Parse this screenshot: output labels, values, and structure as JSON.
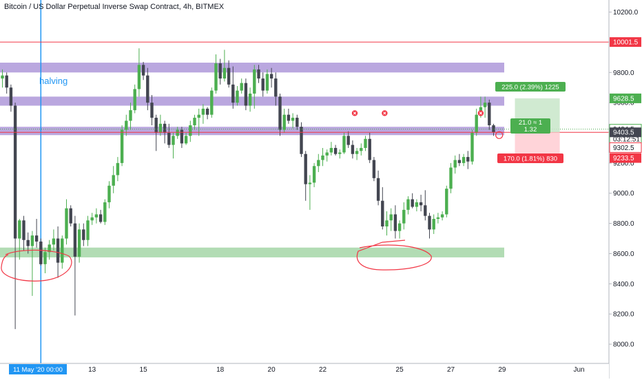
{
  "header": {
    "title": "Bitcoin / US Dollar Perpetual Inverse Swap Contract, 4h, BITMEX"
  },
  "colors": {
    "up": "#4caf50",
    "down": "#434651",
    "purple_zone": "#b39ddb",
    "green_zone": "#a5d6a7",
    "red_line": "#f23645",
    "blue_line": "#2196f3",
    "dotted_line": "#4caf50",
    "profit_box": "#c8e6c9",
    "loss_box": "#ffcdd2"
  },
  "chart_data": {
    "type": "candlestick",
    "title": "Bitcoin / US Dollar Perpetual Inverse Swap Contract, 4h, BITMEX",
    "y_range": [
      7900,
      10280
    ],
    "y_ticks": [
      "10200.0",
      "9800.0",
      "9600.0",
      "9400.0",
      "9200.0",
      "9000.0",
      "8800.0",
      "8600.0",
      "8400.0",
      "8200.0",
      "8000.0"
    ],
    "y_tick_values": [
      10200,
      9800,
      9600,
      9400,
      9200,
      9000,
      8800,
      8600,
      8400,
      8200,
      8000
    ],
    "x_labels": [
      {
        "label": "11 May '20  00:00",
        "bar": 11,
        "highlight": true
      },
      {
        "label": "13",
        "bar": 21
      },
      {
        "label": "15",
        "bar": 33
      },
      {
        "label": "18",
        "bar": 51
      },
      {
        "label": "20",
        "bar": 63
      },
      {
        "label": "22",
        "bar": 75
      },
      {
        "label": "25",
        "bar": 93
      },
      {
        "label": "27",
        "bar": 105
      },
      {
        "label": "29",
        "bar": 117
      },
      {
        "label": "Jun",
        "bar": 135
      }
    ],
    "price_labels": [
      {
        "text": "10001.5",
        "value": 10001.5,
        "style": "red"
      },
      {
        "text": "9628.5",
        "value": 9628.5,
        "style": "green"
      },
      {
        "text": "9424.5",
        "value": 9424.5,
        "style": "green-outline"
      },
      {
        "text": "03:12:51",
        "value": 9360,
        "style": "green-outline"
      },
      {
        "text": "9403.5",
        "value": 9403.5,
        "style": "dark"
      },
      {
        "text": "9302.5",
        "value": 9302.5,
        "style": "red-outline"
      },
      {
        "text": "9233.5",
        "value": 9233.5,
        "style": "red"
      }
    ],
    "zones": [
      {
        "type": "purple",
        "bar_from": 0,
        "bar_to": 117.5,
        "low": 9800,
        "high": 9865
      },
      {
        "type": "purple",
        "bar_from": 0,
        "bar_to": 117.5,
        "low": 9580,
        "high": 9640
      },
      {
        "type": "purple",
        "bar_from": 0,
        "bar_to": 117.5,
        "low": 9385,
        "high": 9440
      },
      {
        "type": "green",
        "bar_from": 0,
        "bar_to": 117.5,
        "low": 8575,
        "high": 8640
      }
    ],
    "lines": [
      {
        "type": "red",
        "value": 10001.5
      },
      {
        "type": "red",
        "value": 9403.5
      },
      {
        "type": "dotted",
        "value": 9424.5
      }
    ],
    "vertical_line_bar": 9,
    "annotations": {
      "halving": "halving",
      "trade_profit": "225.0 (2.39%) 1225",
      "trade_rr_1": "21.0 ≈ 1",
      "trade_rr_2": "1.32",
      "trade_loss": "170.0 (1.81%) 830",
      "trade": {
        "bar_from": 120,
        "bar_to": 130.5,
        "entry": 9403.5,
        "target": 9628.5,
        "stop": 9233.5
      }
    },
    "markers_x_bars": [
      82.5,
      89.5,
      112
    ],
    "markers_y": 9430,
    "candles": [
      [
        9760,
        9820,
        9700,
        9780
      ],
      [
        9780,
        9800,
        9660,
        9700
      ],
      [
        9700,
        9720,
        9540,
        9580
      ],
      [
        9580,
        9600,
        8100,
        8700
      ],
      [
        8700,
        8830,
        8560,
        8820
      ],
      [
        8820,
        8850,
        8620,
        8690
      ],
      [
        8690,
        8740,
        8600,
        8650
      ],
      [
        8650,
        8750,
        8320,
        8720
      ],
      [
        8720,
        8830,
        8640,
        8680
      ],
      [
        8680,
        8700,
        8520,
        8530
      ],
      [
        8530,
        8640,
        8470,
        8610
      ],
      [
        8610,
        8690,
        8560,
        8660
      ],
      [
        8660,
        8760,
        8620,
        8700
      ],
      [
        8700,
        8780,
        8440,
        8540
      ],
      [
        8540,
        8720,
        8500,
        8700
      ],
      [
        8700,
        8960,
        8660,
        8900
      ],
      [
        8900,
        8920,
        8780,
        8800
      ],
      [
        8800,
        8850,
        8190,
        8580
      ],
      [
        8580,
        8800,
        8540,
        8760
      ],
      [
        8760,
        8800,
        8650,
        8690
      ],
      [
        8690,
        8850,
        8650,
        8820
      ],
      [
        8820,
        8870,
        8790,
        8840
      ],
      [
        8840,
        8900,
        8800,
        8860
      ],
      [
        8860,
        8890,
        8800,
        8810
      ],
      [
        8810,
        8960,
        8790,
        8940
      ],
      [
        8940,
        9080,
        8900,
        9050
      ],
      [
        9050,
        9180,
        9000,
        9120
      ],
      [
        9120,
        9240,
        9080,
        9200
      ],
      [
        9200,
        9450,
        9180,
        9420
      ],
      [
        9420,
        9520,
        9380,
        9480
      ],
      [
        9480,
        9600,
        9420,
        9550
      ],
      [
        9550,
        9720,
        9530,
        9690
      ],
      [
        9690,
        9960,
        9640,
        9850
      ],
      [
        9850,
        9870,
        9750,
        9780
      ],
      [
        9780,
        9830,
        9550,
        9600
      ],
      [
        9600,
        9650,
        9450,
        9500
      ],
      [
        9500,
        9520,
        9280,
        9400
      ],
      [
        9400,
        9520,
        9380,
        9460
      ],
      [
        9460,
        9480,
        9330,
        9400
      ],
      [
        9400,
        9460,
        9300,
        9320
      ],
      [
        9320,
        9400,
        9230,
        9380
      ],
      [
        9380,
        9440,
        9360,
        9420
      ],
      [
        9420,
        9440,
        9300,
        9330
      ],
      [
        9330,
        9400,
        9320,
        9380
      ],
      [
        9380,
        9480,
        9340,
        9450
      ],
      [
        9450,
        9520,
        9420,
        9500
      ],
      [
        9500,
        9560,
        9380,
        9520
      ],
      [
        9520,
        9590,
        9460,
        9560
      ],
      [
        9560,
        9570,
        9490,
        9520
      ],
      [
        9520,
        9700,
        9500,
        9680
      ],
      [
        9680,
        9920,
        9660,
        9860
      ],
      [
        9860,
        9890,
        9720,
        9760
      ],
      [
        9760,
        9950,
        9740,
        9830
      ],
      [
        9830,
        9880,
        9700,
        9720
      ],
      [
        9720,
        9840,
        9560,
        9600
      ],
      [
        9600,
        9710,
        9580,
        9680
      ],
      [
        9680,
        9760,
        9660,
        9730
      ],
      [
        9730,
        9760,
        9550,
        9580
      ],
      [
        9580,
        9700,
        9540,
        9660
      ],
      [
        9660,
        9850,
        9560,
        9820
      ],
      [
        9820,
        9850,
        9730,
        9760
      ],
      [
        9760,
        9800,
        9640,
        9680
      ],
      [
        9680,
        9820,
        9660,
        9790
      ],
      [
        9790,
        9830,
        9700,
        9760
      ],
      [
        9760,
        9800,
        9580,
        9640
      ],
      [
        9640,
        9660,
        9380,
        9420
      ],
      [
        9420,
        9560,
        9400,
        9520
      ],
      [
        9520,
        9560,
        9460,
        9480
      ],
      [
        9480,
        9530,
        9430,
        9500
      ],
      [
        9500,
        9520,
        9420,
        9440
      ],
      [
        9440,
        9470,
        9240,
        9260
      ],
      [
        9260,
        9280,
        8950,
        9060
      ],
      [
        9060,
        9120,
        8890,
        9070
      ],
      [
        9070,
        9200,
        9040,
        9180
      ],
      [
        9180,
        9260,
        9140,
        9220
      ],
      [
        9220,
        9300,
        9180,
        9250
      ],
      [
        9250,
        9290,
        9210,
        9270
      ],
      [
        9270,
        9340,
        9250,
        9300
      ],
      [
        9300,
        9320,
        9250,
        9260
      ],
      [
        9260,
        9290,
        9230,
        9270
      ],
      [
        9270,
        9400,
        9260,
        9380
      ],
      [
        9380,
        9410,
        9300,
        9320
      ],
      [
        9320,
        9350,
        9230,
        9260
      ],
      [
        9260,
        9300,
        9220,
        9280
      ],
      [
        9280,
        9330,
        9250,
        9300
      ],
      [
        9300,
        9380,
        9280,
        9360
      ],
      [
        9360,
        9400,
        9200,
        9220
      ],
      [
        9220,
        9240,
        9080,
        9100
      ],
      [
        9100,
        9150,
        8920,
        8950
      ],
      [
        8950,
        9040,
        8760,
        8780
      ],
      [
        8780,
        8880,
        8720,
        8820
      ],
      [
        8820,
        8900,
        8750,
        8860
      ],
      [
        8860,
        8920,
        8700,
        8750
      ],
      [
        8750,
        8820,
        8700,
        8800
      ],
      [
        8800,
        8940,
        8760,
        8890
      ],
      [
        8890,
        8980,
        8860,
        8960
      ],
      [
        8960,
        9000,
        8900,
        8910
      ],
      [
        8910,
        8960,
        8880,
        8940
      ],
      [
        8940,
        8990,
        8880,
        8920
      ],
      [
        8920,
        9020,
        8820,
        8850
      ],
      [
        8850,
        8870,
        8700,
        8760
      ],
      [
        8760,
        8860,
        8730,
        8830
      ],
      [
        8830,
        8870,
        8800,
        8840
      ],
      [
        8840,
        8880,
        8820,
        8860
      ],
      [
        8860,
        9050,
        8840,
        9030
      ],
      [
        9030,
        9200,
        9000,
        9170
      ],
      [
        9170,
        9250,
        9130,
        9220
      ],
      [
        9220,
        9260,
        9180,
        9200
      ],
      [
        9200,
        9260,
        9180,
        9240
      ],
      [
        9240,
        9280,
        9160,
        9210
      ],
      [
        9210,
        9420,
        9190,
        9400
      ],
      [
        9400,
        9560,
        9380,
        9520
      ],
      [
        9520,
        9640,
        9500,
        9570
      ],
      [
        9570,
        9640,
        9500,
        9600
      ],
      [
        9600,
        9620,
        9420,
        9450
      ],
      [
        9450,
        9460,
        9380,
        9404
      ]
    ]
  }
}
